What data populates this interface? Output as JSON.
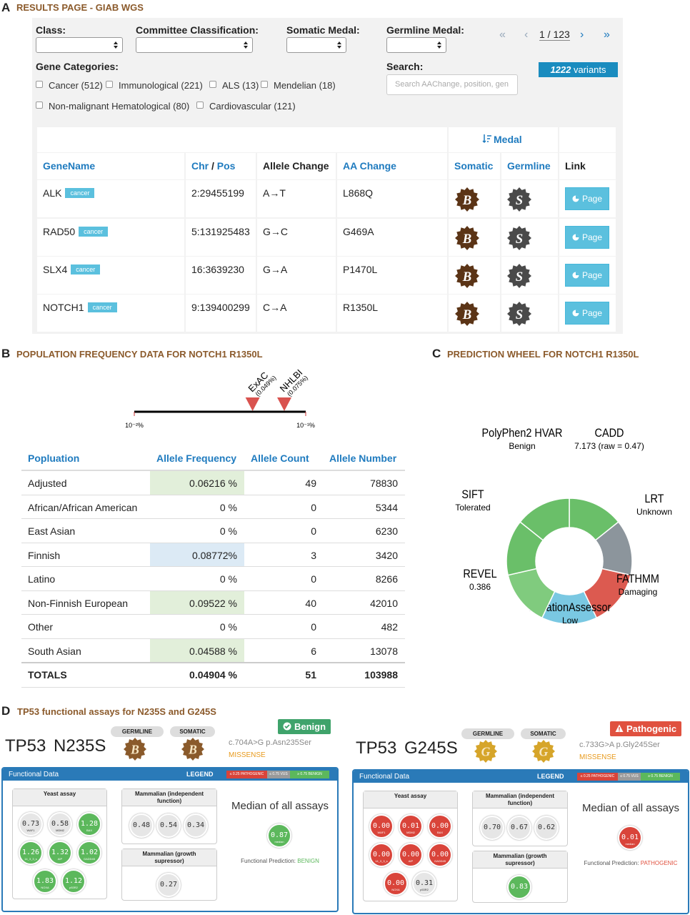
{
  "panel_a": {
    "letter": "A",
    "title": "RESULTS PAGE - GIAB WGS",
    "filters": [
      "Class:",
      "Committee Classification:",
      "Somatic Medal:",
      "Germline Medal:"
    ],
    "pagination": {
      "first": "«",
      "prev": "‹",
      "current": "1 / 123",
      "next": "›",
      "last": "»"
    },
    "gene_categories": {
      "label": "Gene Categories:",
      "items": [
        "Cancer (512)",
        "Immunological (221)",
        "ALS (13)",
        "Mendelian (18)",
        "Non-malignant Hematological (80)",
        "Cardiovascular (121)"
      ]
    },
    "search": {
      "label": "Search:",
      "placeholder": "Search AAChange, position, gen"
    },
    "variant_count": {
      "count": "1222",
      "label": "variants"
    },
    "table": {
      "group_header": "Medal",
      "headers": {
        "gene": "GeneName",
        "chr": "Chr",
        "sep": "/",
        "pos": "Pos",
        "allele": "Allele Change",
        "aa": "AA Change",
        "somatic": "Somatic",
        "germline": "Germline",
        "link": "Link"
      },
      "rows": [
        {
          "gene": "ALK",
          "tag": "cancer",
          "position": "2:29455199",
          "allele_change": "A→T",
          "aa_change": "L868Q",
          "somatic": "B",
          "germline": "S",
          "link": "Page"
        },
        {
          "gene": "RAD50",
          "tag": "cancer",
          "position": "5:131925483",
          "allele_change": "G→C",
          "aa_change": "G469A",
          "somatic": "B",
          "germline": "S",
          "link": "Page"
        },
        {
          "gene": "SLX4",
          "tag": "cancer",
          "position": "16:3639230",
          "allele_change": "G→A",
          "aa_change": "P1470L",
          "somatic": "B",
          "germline": "S",
          "link": "Page"
        },
        {
          "gene": "NOTCH1",
          "tag": "cancer",
          "position": "9:139400299",
          "allele_change": "C→A",
          "aa_change": "R1350L",
          "somatic": "B",
          "germline": "S",
          "link": "Page"
        }
      ]
    }
  },
  "panel_b": {
    "letter": "B",
    "title": "POPULATION FREQUENCY DATA FOR NOTCH1 R1350L",
    "track": {
      "log_scale": true,
      "xlim": [
        0.01,
        0.1
      ],
      "min_label": "10⁻²%",
      "max_label": "10⁻¹%",
      "markers": [
        {
          "name": "ExAC",
          "label": "(0.049%)",
          "value": 0.049
        },
        {
          "name": "NHLBI",
          "label": "(0.075%)",
          "value": 0.075
        }
      ]
    },
    "table": {
      "headers": [
        "Popluation",
        "Allele Frequency",
        "Allele Count",
        "Allele Number"
      ],
      "rows": [
        [
          "Adjusted",
          "0.06216 %",
          "49",
          "78830"
        ],
        [
          "African/African American",
          "0 %",
          "0",
          "5344"
        ],
        [
          "East Asian",
          "0 %",
          "0",
          "6230"
        ],
        [
          "Finnish",
          "0.08772%",
          "3",
          "3420"
        ],
        [
          "Latino",
          "0 %",
          "0",
          "8266"
        ],
        [
          "Non-Finnish European",
          "0.09522 %",
          "40",
          "42010"
        ],
        [
          "Other",
          "0 %",
          "0",
          "482"
        ],
        [
          "South Asian",
          "0.04588 %",
          "6",
          "13078"
        ]
      ],
      "af_cell_colors": [
        "#e2efda",
        "#ffffff",
        "#ffffff",
        "#dceaf5",
        "#ffffff",
        "#e2efda",
        "#ffffff",
        "#e2efda"
      ],
      "totals": [
        "TOTALS",
        "0.04904 %",
        "51",
        "103988"
      ]
    }
  },
  "panel_c": {
    "letter": "C",
    "title": "PREDICTION WHEEL FOR NOTCH1 R1350L",
    "segments": [
      {
        "name": "CADD",
        "detail": "7.173 (raw = 0.47)",
        "color": "#6abf69"
      },
      {
        "name": "LRT",
        "detail": "Unknown",
        "color": "#8c959c"
      },
      {
        "name": "FATHMM",
        "detail": "Damaging",
        "color": "#dc5a50"
      },
      {
        "name": "MutationAssessor",
        "detail": "Low",
        "color": "#7ac8e2"
      },
      {
        "name": "REVEL",
        "detail": "0.386",
        "color": "#80cb7e"
      },
      {
        "name": "SIFT",
        "detail": "Tolerated",
        "color": "#6abf69"
      },
      {
        "name": "PolyPhen2 HVAR",
        "detail": "Benign",
        "color": "#6abf69"
      }
    ]
  },
  "panel_d": {
    "letter": "D",
    "title": "TP53 functional assays for N235S and G245S",
    "cards": [
      {
        "gene": "TP53",
        "variant": "N235S",
        "germline_label": "GERMLINE",
        "somatic_label": "SOMATIC",
        "germline_medal": "B",
        "somatic_medal": "B",
        "medal_color": "#8a5a2b",
        "classification": "Benign",
        "classification_color": "#3fa36b",
        "hgvs": "c.704A>G p.Asn235Ser",
        "consequence": "MISSENSE",
        "panel_title": "Functional Data",
        "legend_title": "LEGEND",
        "legend": [
          {
            "label": "≤ 0.25 PATHOGENIC",
            "color": "#d9443a"
          },
          {
            "label": "≤ 0.75 VUS",
            "color": "#9a9a9a"
          },
          {
            "label": "≥ 0.75 BENIGN",
            "color": "#5cb85c"
          }
        ],
        "yeast": {
          "title": "Yeast assay",
          "values": [
            "0.73",
            "0.58",
            "1.28",
            "1.26",
            "1.32",
            "1.02",
            "1.83",
            "1.12"
          ],
          "labels": [
            "WAF1",
            "MDM2",
            "BAX",
            "14_3_3_s",
            "AIP",
            "GADD45",
            "NOXA",
            "p53R2"
          ]
        },
        "mammalian_indep": {
          "title": "Mammalian (independent function)",
          "values": [
            "0.48",
            "0.54",
            "0.34"
          ]
        },
        "mammalian_growth": {
          "title": "Mammalian (growth supressor)",
          "values": [
            "0.27"
          ]
        },
        "median": {
          "title": "Median of all assays",
          "value": "0.87",
          "label": "median"
        },
        "prediction": {
          "label": "Functional Prediction:",
          "value": "BENIGN",
          "color": "#5cb85c"
        }
      },
      {
        "gene": "TP53",
        "variant": "G245S",
        "germline_label": "GERMLINE",
        "somatic_label": "SOMATIC",
        "germline_medal": "G",
        "somatic_medal": "G",
        "medal_color": "#d6a52a",
        "classification": "Pathogenic",
        "classification_color": "#e0513f",
        "hgvs": "c.733G>A p.Gly245Ser",
        "consequence": "MISSENSE",
        "panel_title": "Functional Data",
        "legend_title": "LEGEND",
        "legend": [
          {
            "label": "≤ 0.25 PATHOGENIC",
            "color": "#d9443a"
          },
          {
            "label": "≤ 0.75 VUS",
            "color": "#9a9a9a"
          },
          {
            "label": "≥ 0.75 BENIGN",
            "color": "#5cb85c"
          }
        ],
        "yeast": {
          "title": "Yeast assay",
          "values": [
            "0.00",
            "0.01",
            "0.00",
            "0.00",
            "0.00",
            "0.00",
            "0.00",
            "0.31"
          ],
          "labels": [
            "WAF1",
            "MDM2",
            "BAX",
            "14_3_3_s",
            "AIP",
            "GADD45",
            "NOXA",
            "p53R2"
          ]
        },
        "mammalian_indep": {
          "title": "Mammalian (independent function)",
          "values": [
            "0.70",
            "0.67",
            "0.62"
          ]
        },
        "mammalian_growth": {
          "title": "Mammalian (growth supressor)",
          "values": [
            "0.83"
          ]
        },
        "median": {
          "title": "Median of all assays",
          "value": "0.01",
          "label": "median"
        },
        "prediction": {
          "label": "Functional Prediction:",
          "value": "PATHOGENIC",
          "color": "#e0513f"
        }
      }
    ]
  }
}
